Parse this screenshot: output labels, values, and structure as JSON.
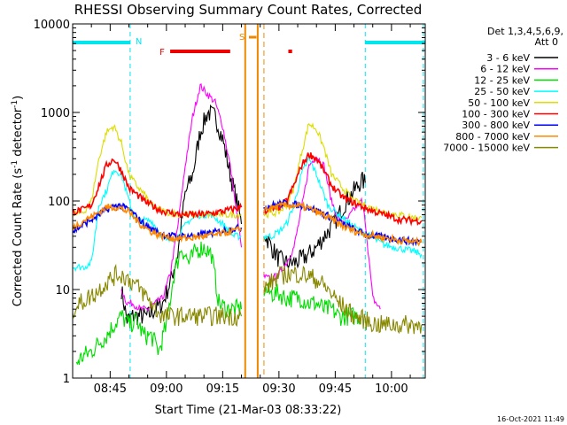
{
  "chart_data": {
    "type": "line",
    "title": "RHESSI Observing Summary Count Rates, Corrected",
    "xlabel": "Start Time (21-Mar-03 08:33:22)",
    "ylabel": "Corrected Count Rate (s",
    "ylabel_sup1": "-1",
    "ylabel_mid": " detector",
    "ylabel_sup2": "-1",
    "ylabel_end": ")",
    "yscale": "log",
    "ylim": [
      1,
      10000
    ],
    "xlim": [
      "08:35:00",
      "10:09:00"
    ],
    "x_ticks": [
      "08:45",
      "09:00",
      "09:15",
      "09:30",
      "09:45",
      "10:00"
    ],
    "y_ticks": [
      "1",
      "10",
      "100",
      "1000",
      "10000"
    ],
    "timestamp": "16-Oct-2021 11:49",
    "legend_header_1": "Det 1,3,4,5,6,9,",
    "legend_header_2": "Att 0",
    "flag_labels": {
      "night": "N",
      "flare": "F",
      "saa": "S"
    },
    "legend": [
      {
        "label": "3 - 6 keV",
        "color": "#000000"
      },
      {
        "label": "6 - 12 keV",
        "color": "#ff00ff"
      },
      {
        "label": "12 - 25 keV",
        "color": "#00dd00"
      },
      {
        "label": "25 - 50 keV",
        "color": "#00ffff"
      },
      {
        "label": "50 - 100 keV",
        "color": "#dddd00"
      },
      {
        "label": "100 - 300 keV",
        "color": "#ff0000"
      },
      {
        "label": "300 - 800 keV",
        "color": "#0000ff"
      },
      {
        "label": "800 - 7000 keV",
        "color": "#ff8800"
      },
      {
        "label": "7000 - 15000 keV",
        "color": "#888800"
      }
    ],
    "night_intervals": [
      [
        "08:35:00",
        "08:50:20"
      ],
      [
        "09:53:00",
        "10:09:00"
      ]
    ],
    "flare_intervals": [
      [
        "09:01:00",
        "09:17:00"
      ],
      [
        "09:32:30",
        "09:33:30"
      ]
    ],
    "saa_intervals": [
      [
        "09:22:00",
        "09:24:00"
      ]
    ],
    "night_boundaries": [
      "08:50:20",
      "09:53:00",
      "10:08:30"
    ],
    "saa_boundaries": [
      "09:21:00",
      "09:24:20",
      "09:26:00"
    ],
    "series": [
      {
        "name": "3 - 6 keV",
        "color": "#000000",
        "x": [
          "08:48:00",
          "08:49:30",
          "08:51:00",
          "08:53:00",
          "08:55:00",
          "08:57:00",
          "08:59:00",
          "09:01:00",
          "09:03:00",
          "09:05:00",
          "09:07:00",
          "09:09:00",
          "09:11:00",
          "09:13:00",
          "09:15:00",
          "09:17:00",
          "09:19:00",
          "09:20:00",
          "09:26:00",
          "09:28:00",
          "09:30:00",
          "09:32:00",
          "09:34:00",
          "09:36:00",
          "09:38:00",
          "09:40:00",
          "09:42:00",
          "09:44:00",
          "09:46:00",
          "09:48:00",
          "09:50:00",
          "09:52:00",
          "09:53:00"
        ],
        "y": [
          10,
          4.5,
          5,
          5,
          5,
          6,
          7,
          12,
          25,
          120,
          200,
          600,
          1000,
          900,
          500,
          200,
          90,
          55,
          45,
          30,
          22,
          20,
          20,
          22,
          25,
          30,
          40,
          50,
          70,
          100,
          130,
          170,
          160
        ]
      },
      {
        "name": "6 - 12 keV",
        "color": "#ff00ff",
        "x": [
          "08:48:00",
          "08:49:30",
          "08:51:00",
          "08:53:00",
          "08:55:00",
          "08:57:00",
          "08:59:00",
          "09:01:00",
          "09:03:00",
          "09:05:00",
          "09:07:00",
          "09:09:00",
          "09:11:00",
          "09:13:00",
          "09:15:00",
          "09:17:00",
          "09:19:00",
          "09:20:00",
          "09:26:00",
          "09:28:00",
          "09:30:00",
          "09:32:00",
          "09:34:00",
          "09:36:00",
          "09:38:00",
          "09:40:00",
          "09:42:00",
          "09:44:00",
          "09:46:00",
          "09:48:00",
          "09:50:00",
          "09:52:00",
          "09:53:00",
          "09:55:00",
          "09:57:00"
        ],
        "y": [
          10,
          7,
          7,
          6,
          6,
          7,
          8,
          15,
          50,
          250,
          900,
          2000,
          1600,
          1300,
          700,
          250,
          60,
          30,
          14,
          13,
          15,
          20,
          30,
          80,
          250,
          320,
          250,
          100,
          60,
          60,
          80,
          100,
          60,
          8,
          6
        ]
      },
      {
        "name": "12 - 25 keV",
        "color": "#00dd00",
        "x": [
          "08:36:00",
          "08:38:00",
          "08:40:00",
          "08:42:00",
          "08:44:00",
          "08:46:00",
          "08:48:00",
          "08:50:00",
          "08:52:00",
          "08:54:00",
          "08:56:00",
          "08:58:00",
          "09:00:00",
          "09:02:00",
          "09:04:00",
          "09:06:00",
          "09:08:00",
          "09:10:00",
          "09:12:00",
          "09:14:00",
          "09:16:00",
          "09:18:00",
          "09:20:00",
          "09:26:00",
          "09:28:00",
          "09:30:00",
          "09:32:00",
          "09:34:00",
          "09:36:00",
          "09:38:00",
          "09:40:00",
          "09:42:00",
          "09:44:00",
          "09:46:00",
          "09:48:00",
          "09:50:00",
          "09:52:00"
        ],
        "y": [
          1.5,
          1.8,
          2,
          2.5,
          3,
          4,
          5,
          4,
          4.5,
          3,
          3,
          2,
          4,
          15,
          30,
          20,
          28,
          30,
          25,
          7,
          6,
          6,
          6,
          10,
          9,
          9,
          8,
          8,
          8,
          7,
          7,
          6,
          6,
          5,
          5,
          5,
          5
        ]
      },
      {
        "name": "25 - 50 keV",
        "color": "#00ffff",
        "x": [
          "08:35:00",
          "08:38:00",
          "08:40:00",
          "08:42:00",
          "08:44:00",
          "08:46:00",
          "08:48:00",
          "08:50:00",
          "08:52:00",
          "08:54:00",
          "08:56:00",
          "08:58:00",
          "09:00:00",
          "09:03:00",
          "09:06:00",
          "09:09:00",
          "09:12:00",
          "09:15:00",
          "09:18:00",
          "09:20:00",
          "09:26:00",
          "09:28:00",
          "09:30:00",
          "09:32:00",
          "09:34:00",
          "09:36:00",
          "09:38:00",
          "09:40:00",
          "09:43:00",
          "09:46:00",
          "09:49:00",
          "09:52:00",
          "09:55:00",
          "09:58:00",
          "10:01:00",
          "10:04:00",
          "10:06:00",
          "10:08:00"
        ],
        "y": [
          18,
          18,
          20,
          90,
          130,
          230,
          200,
          100,
          60,
          60,
          60,
          45,
          35,
          40,
          60,
          70,
          70,
          55,
          40,
          40,
          40,
          40,
          45,
          55,
          90,
          200,
          300,
          200,
          90,
          70,
          55,
          45,
          38,
          32,
          30,
          28,
          27,
          25
        ]
      },
      {
        "name": "50 - 100 keV",
        "color": "#dddd00",
        "x": [
          "08:35:00",
          "08:38:00",
          "08:40:00",
          "08:42:00",
          "08:44:00",
          "08:46:00",
          "08:48:00",
          "08:50:00",
          "08:52:00",
          "08:54:00",
          "08:56:00",
          "08:58:00",
          "09:00:00",
          "09:04:00",
          "09:08:00",
          "09:12:00",
          "09:16:00",
          "09:20:00",
          "09:26:00",
          "09:28:00",
          "09:30:00",
          "09:32:00",
          "09:34:00",
          "09:36:00",
          "09:38:00",
          "09:40:00",
          "09:42:00",
          "09:44:00",
          "09:47:00",
          "09:50:00",
          "09:54:00",
          "09:58:00",
          "10:02:00",
          "10:06:00",
          "10:08:00"
        ],
        "y": [
          70,
          75,
          100,
          300,
          600,
          700,
          450,
          200,
          150,
          120,
          90,
          80,
          75,
          70,
          70,
          70,
          70,
          70,
          70,
          72,
          75,
          90,
          140,
          350,
          750,
          650,
          400,
          200,
          140,
          100,
          85,
          75,
          70,
          65,
          65
        ]
      },
      {
        "name": "100 - 300 keV",
        "color": "#ff0000",
        "x": [
          "08:35:00",
          "08:38:00",
          "08:40:00",
          "08:42:00",
          "08:44:00",
          "08:46:00",
          "08:48:00",
          "08:50:00",
          "08:52:00",
          "08:54:00",
          "08:56:00",
          "08:58:00",
          "09:00:00",
          "09:04:00",
          "09:08:00",
          "09:12:00",
          "09:16:00",
          "09:20:00",
          "09:26:00",
          "09:28:00",
          "09:30:00",
          "09:32:00",
          "09:34:00",
          "09:36:00",
          "09:38:00",
          "09:40:00",
          "09:42:00",
          "09:44:00",
          "09:47:00",
          "09:50:00",
          "09:54:00",
          "09:58:00",
          "10:02:00",
          "10:06:00",
          "10:08:00"
        ],
        "y": [
          75,
          80,
          90,
          150,
          250,
          300,
          220,
          140,
          120,
          100,
          90,
          80,
          75,
          70,
          70,
          72,
          78,
          85,
          78,
          80,
          85,
          100,
          150,
          250,
          340,
          300,
          220,
          150,
          110,
          95,
          80,
          70,
          62,
          60,
          60
        ]
      },
      {
        "name": "300 - 800 keV",
        "color": "#0000ff",
        "x": [
          "08:35:00",
          "08:38:00",
          "08:41:00",
          "08:44:00",
          "08:47:00",
          "08:50:00",
          "08:53:00",
          "08:56:00",
          "08:59:00",
          "09:02:00",
          "09:06:00",
          "09:10:00",
          "09:14:00",
          "09:17:00",
          "09:20:00",
          "09:26:00",
          "09:29:00",
          "09:32:00",
          "09:35:00",
          "09:38:00",
          "09:41:00",
          "09:44:00",
          "09:47:00",
          "09:50:00",
          "09:53:00",
          "09:56:00",
          "09:59:00",
          "10:02:00",
          "10:05:00",
          "10:08:00"
        ],
        "y": [
          45,
          55,
          65,
          80,
          90,
          80,
          60,
          48,
          42,
          40,
          40,
          42,
          45,
          48,
          50,
          85,
          90,
          95,
          90,
          85,
          75,
          65,
          55,
          48,
          42,
          40,
          38,
          37,
          35,
          35
        ]
      },
      {
        "name": "800 - 7000 keV",
        "color": "#ff8800",
        "x": [
          "08:35:00",
          "08:38:00",
          "08:41:00",
          "08:44:00",
          "08:47:00",
          "08:50:00",
          "08:53:00",
          "08:56:00",
          "08:59:00",
          "09:02:00",
          "09:06:00",
          "09:10:00",
          "09:14:00",
          "09:17:00",
          "09:20:00",
          "09:26:00",
          "09:29:00",
          "09:32:00",
          "09:35:00",
          "09:38:00",
          "09:41:00",
          "09:44:00",
          "09:47:00",
          "09:50:00",
          "09:53:00",
          "09:56:00",
          "09:59:00",
          "10:02:00",
          "10:05:00",
          "10:08:00"
        ],
        "y": [
          50,
          60,
          70,
          85,
          85,
          75,
          55,
          45,
          40,
          38,
          38,
          40,
          42,
          45,
          48,
          80,
          85,
          90,
          88,
          82,
          72,
          62,
          52,
          46,
          42,
          40,
          38,
          36,
          35,
          34
        ]
      },
      {
        "name": "7000 - 15000 keV",
        "color": "#888800",
        "x": [
          "08:35:00",
          "08:37:00",
          "08:39:00",
          "08:41:00",
          "08:43:00",
          "08:45:00",
          "08:47:00",
          "08:49:00",
          "08:51:00",
          "08:53:00",
          "08:55:00",
          "08:57:00",
          "08:59:00",
          "09:02:00",
          "09:06:00",
          "09:10:00",
          "09:14:00",
          "09:18:00",
          "09:20:00",
          "09:26:00",
          "09:28:00",
          "09:30:00",
          "09:32:00",
          "09:34:00",
          "09:36:00",
          "09:38:00",
          "09:40:00",
          "09:42:00",
          "09:44:00",
          "09:46:00",
          "09:48:00",
          "09:50:00",
          "09:53:00",
          "09:56:00",
          "10:00:00",
          "10:04:00",
          "10:08:00"
        ],
        "y": [
          6,
          7,
          8,
          9,
          11,
          13,
          15,
          14,
          12,
          10,
          8,
          6,
          5,
          5,
          5,
          5,
          5,
          5,
          5,
          10,
          12,
          14,
          15,
          15,
          15,
          14,
          13,
          11,
          9,
          7,
          6,
          5,
          4.5,
          4,
          4,
          4,
          4
        ]
      }
    ]
  }
}
